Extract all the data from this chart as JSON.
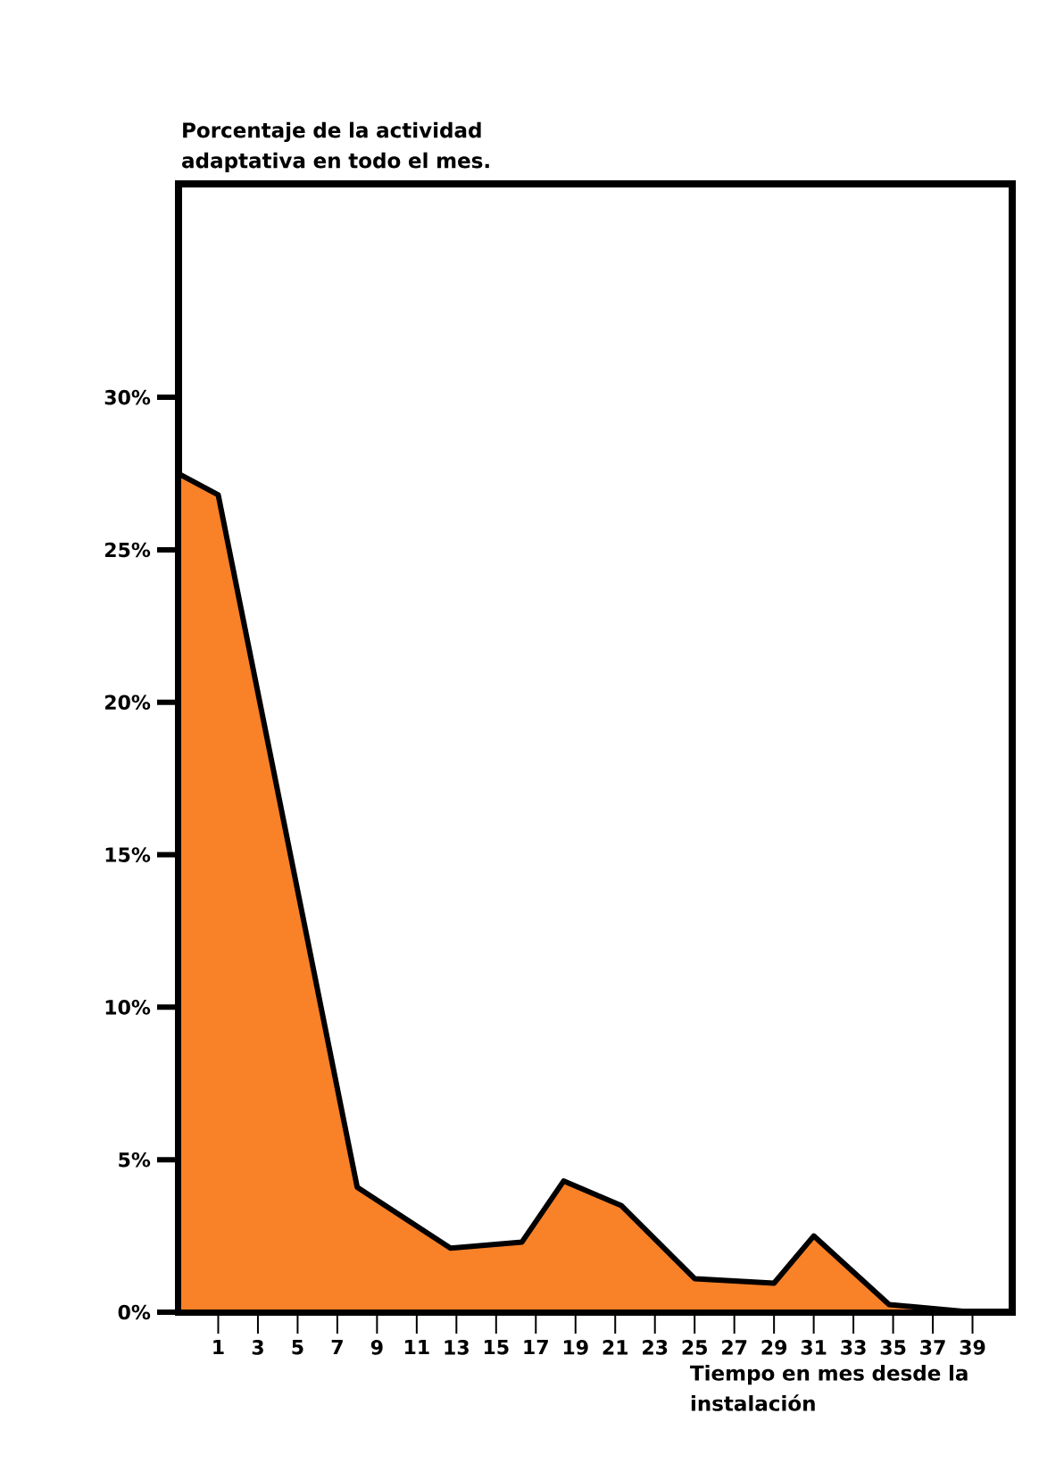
{
  "chart_data": {
    "type": "area",
    "title": "Porcentaje de la actividad adaptativa en todo el mes.",
    "xlabel": "Tiempo en mes desde la instalación",
    "x": [
      -1,
      1,
      8,
      12.7,
      16.3,
      18.4,
      21.3,
      25,
      29,
      31,
      34.8,
      39,
      41
    ],
    "series": [
      {
        "color": "#f98128",
        "values": [
          27.5,
          26.8,
          4.1,
          2.1,
          2.3,
          4.3,
          3.5,
          1.1,
          0.95,
          2.5,
          0.25,
          0,
          0
        ]
      }
    ],
    "xlim": [
      -1,
      41
    ],
    "ylim": [
      0,
      37
    ],
    "xticks": [
      1,
      3,
      5,
      7,
      9,
      11,
      13,
      15,
      17,
      19,
      21,
      23,
      25,
      27,
      29,
      31,
      33,
      35,
      37,
      39
    ],
    "yticks": [
      {
        "value": 0,
        "label": "0%"
      },
      {
        "value": 5,
        "label": "5%"
      },
      {
        "value": 10,
        "label": "10%"
      },
      {
        "value": 15,
        "label": "15%"
      },
      {
        "value": 20,
        "label": "20%"
      },
      {
        "value": 25,
        "label": "25%"
      },
      {
        "value": 30,
        "label": "30%"
      }
    ],
    "grid": false,
    "marker": "none",
    "line_style": "solid"
  }
}
